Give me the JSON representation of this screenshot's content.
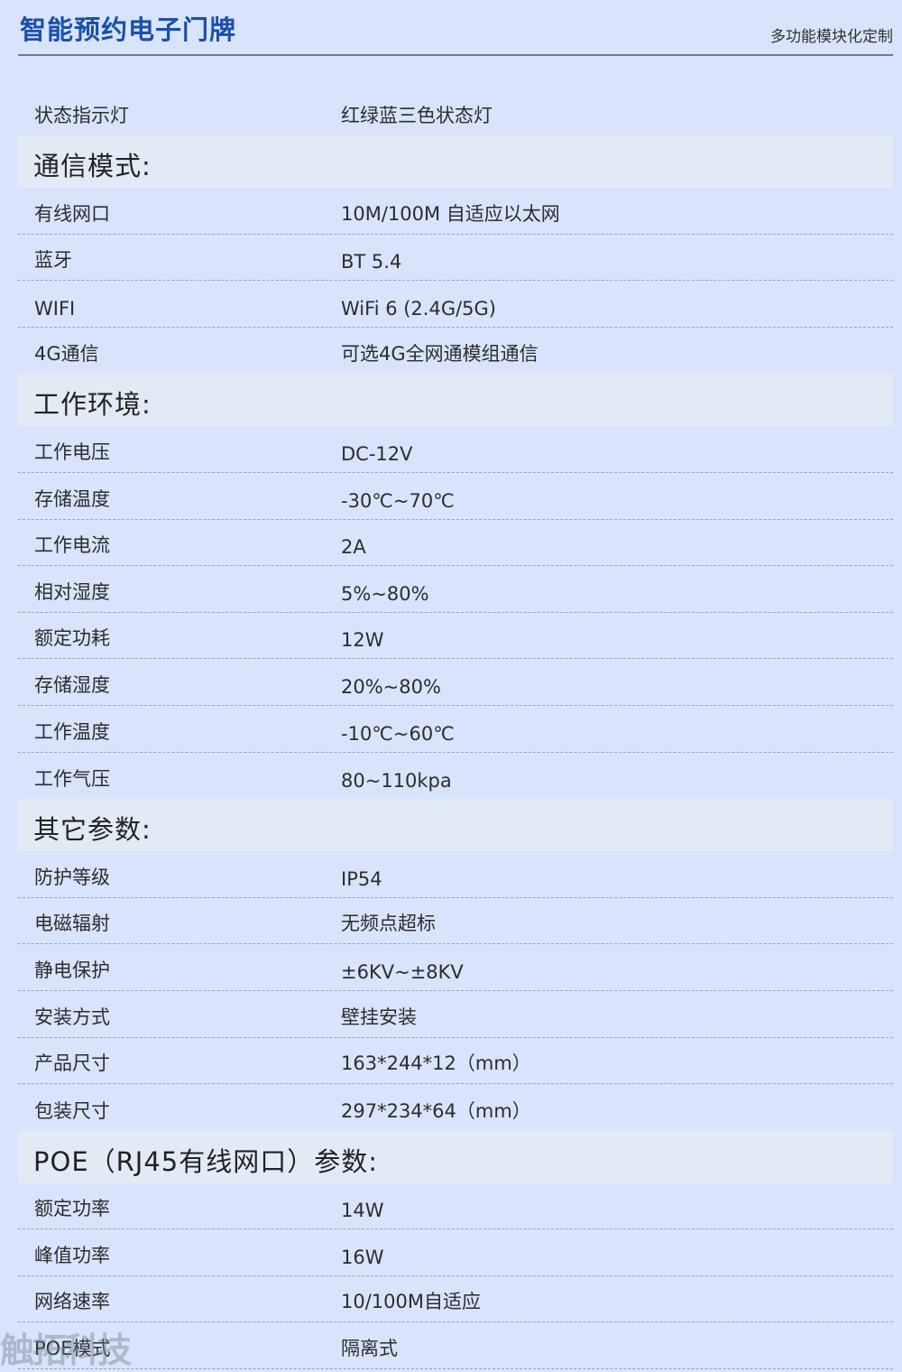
{
  "header": {
    "title": "智能预约电子门牌",
    "subtitle": "多功能模块化定制"
  },
  "top_rows": [
    {
      "label": "状态指示灯",
      "value": "红绿蓝三色状态灯"
    }
  ],
  "sections": [
    {
      "title": "通信模式:",
      "rows": [
        {
          "label": "有线网口",
          "value": "10M/100M 自适应以太网"
        },
        {
          "label": "蓝牙",
          "value": "BT 5.4"
        },
        {
          "label": "WIFI",
          "value": "WiFi 6 (2.4G/5G)"
        },
        {
          "label": "4G通信",
          "value": "可选4G全网通模组通信"
        }
      ]
    },
    {
      "title": "工作环境:",
      "rows": [
        {
          "label": "工作电压",
          "value": "DC-12V"
        },
        {
          "label": "存储温度",
          "value": "-30℃~70℃"
        },
        {
          "label": "工作电流",
          "value": "2A"
        },
        {
          "label": "相对湿度",
          "value": "5%~80%"
        },
        {
          "label": "额定功耗",
          "value": "12W"
        },
        {
          "label": "存储湿度",
          "value": "20%~80%"
        },
        {
          "label": "工作温度",
          "value": "-10℃~60℃"
        },
        {
          "label": "工作气压",
          "value": "80~110kpa"
        }
      ]
    },
    {
      "title": "其它参数:",
      "rows": [
        {
          "label": "防护等级",
          "value": "IP54"
        },
        {
          "label": "电磁辐射",
          "value": "无频点超标"
        },
        {
          "label": "静电保护",
          "value": "±6KV~±8KV"
        },
        {
          "label": "安装方式",
          "value": "壁挂安装"
        },
        {
          "label": "产品尺寸",
          "value": "163*244*12（mm）"
        },
        {
          "label": "包装尺寸",
          "value": "297*234*64（mm）"
        }
      ]
    },
    {
      "title": "POE（RJ45有线网口）参数:",
      "rows": [
        {
          "label": "额定功率",
          "value": "14W"
        },
        {
          "label": "峰值功率",
          "value": "16W"
        },
        {
          "label": "网络速率",
          "value": "10/100M自适应"
        },
        {
          "label": "POE模式",
          "value": "隔离式"
        }
      ]
    }
  ],
  "watermark": "触拓科技",
  "colors": {
    "background": "#d7e4fb",
    "title": "#1b4fae",
    "section_band": "#e2eaf6"
  }
}
